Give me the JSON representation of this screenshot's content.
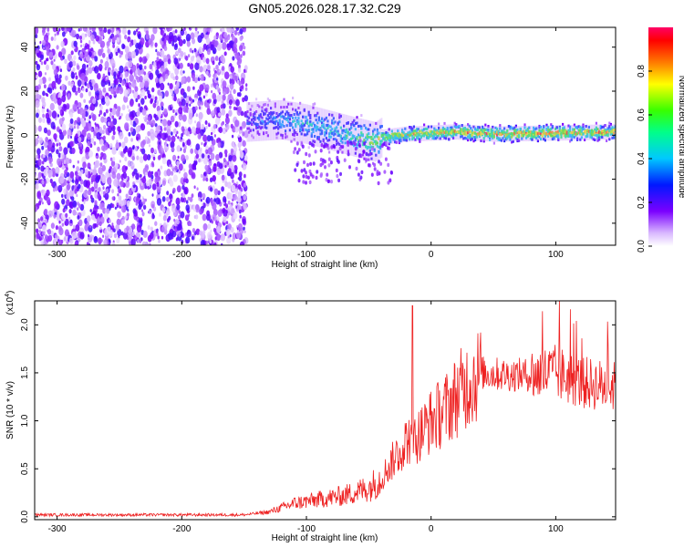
{
  "title": "GN05.2026.028.17.32.C29",
  "chart_data": [
    {
      "type": "heatmap",
      "title": "GN05.2026.028.17.32.C29",
      "xlabel": "Height of straight line (km)",
      "ylabel": "Frequency (Hz)",
      "xlim": [
        -318,
        148
      ],
      "ylim": [
        -50,
        49
      ],
      "xticks": [
        "-300",
        "-200",
        "-100",
        "0",
        "100"
      ],
      "yticks": [
        "40",
        "20",
        "0",
        "-20",
        "-40"
      ],
      "colorbar": {
        "label": "Normalized spectral amplitude",
        "range": [
          0,
          1
        ],
        "ticks": [
          "0.0",
          "0.2",
          "0.4",
          "0.6",
          "0.8"
        ]
      },
      "noise_region_x": [
        -318,
        -148
      ],
      "signal_track": {
        "x": [
          -148,
          -120,
          -100,
          -80,
          -60,
          -45,
          -40,
          -20,
          0,
          20,
          50,
          100,
          148
        ],
        "y": [
          6,
          7,
          5,
          2,
          -1,
          -3,
          -1,
          0.5,
          1,
          1.5,
          0.5,
          1,
          1.5
        ],
        "peak_amplitude": [
          0.3,
          0.45,
          0.5,
          0.55,
          0.6,
          0.7,
          0.75,
          0.8,
          0.85,
          0.85,
          0.9,
          0.9,
          0.85
        ]
      }
    },
    {
      "type": "line",
      "xlabel": "Height of straight line (km)",
      "ylabel": "SNR (10 * v/v)",
      "multiplier_label": "(x10",
      "multiplier_exp": "4",
      "multiplier_close": ")",
      "xlim": [
        -318,
        148
      ],
      "ylim": [
        -0.03,
        2.25
      ],
      "xticks": [
        "-300",
        "-200",
        "-100",
        "0",
        "100"
      ],
      "yticks": [
        "0.0",
        "0.5",
        "1.0",
        "1.5",
        "2.0"
      ],
      "series": [
        {
          "color": "#ee2222",
          "x": [
            -318,
            -200,
            -150,
            -130,
            -110,
            -90,
            -70,
            -50,
            -40,
            -30,
            -20,
            -10,
            0,
            10,
            20,
            30,
            40,
            60,
            80,
            100,
            120,
            148
          ],
          "y": [
            0.02,
            0.02,
            0.02,
            0.05,
            0.14,
            0.18,
            0.22,
            0.3,
            0.4,
            0.6,
            0.8,
            0.85,
            1.0,
            1.1,
            1.25,
            1.4,
            1.5,
            1.48,
            1.48,
            1.5,
            1.4,
            1.35
          ]
        }
      ]
    }
  ]
}
